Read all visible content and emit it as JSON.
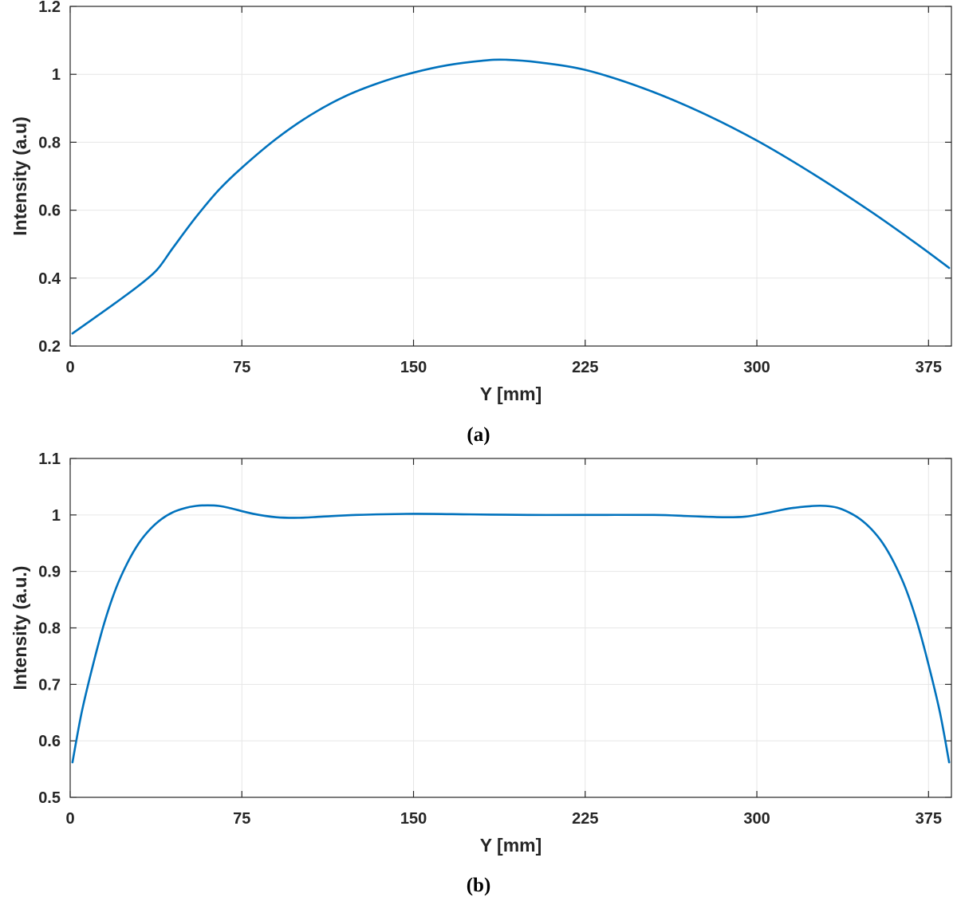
{
  "colors": {
    "series": "#0072bd",
    "axis": "#262626",
    "grid": "#e6e6e6"
  },
  "chart_data": [
    {
      "type": "line",
      "panel_label": "(a)",
      "xlabel": "Y [mm]",
      "ylabel": "Intensity (a.u)",
      "xlim": [
        0,
        385
      ],
      "ylim": [
        0.2,
        1.2
      ],
      "xticks": [
        0,
        75,
        150,
        225,
        300,
        375
      ],
      "yticks": [
        0.2,
        0.4,
        0.6,
        0.8,
        1,
        1.2
      ],
      "ytick_labels": [
        "0.2",
        "0.4",
        "0.6",
        "0.8",
        "1",
        "1.2"
      ],
      "grid": true,
      "series": [
        {
          "x": [
            1,
            10,
            20,
            30,
            38,
            45,
            55,
            65,
            75,
            90,
            105,
            120,
            135,
            150,
            165,
            180,
            190,
            205,
            225,
            250,
            275,
            300,
            325,
            350,
            370,
            384
          ],
          "y": [
            0.237,
            0.28,
            0.328,
            0.378,
            0.425,
            0.49,
            0.58,
            0.66,
            0.725,
            0.81,
            0.88,
            0.935,
            0.975,
            1.005,
            1.027,
            1.04,
            1.043,
            1.035,
            1.013,
            0.96,
            0.89,
            0.805,
            0.705,
            0.595,
            0.5,
            0.43
          ]
        }
      ]
    },
    {
      "type": "line",
      "panel_label": "(b)",
      "xlabel": "Y [mm]",
      "ylabel": "Intensity (a.u.)",
      "xlim": [
        0,
        385
      ],
      "ylim": [
        0.5,
        1.1
      ],
      "xticks": [
        0,
        75,
        150,
        225,
        300,
        375
      ],
      "yticks": [
        0.5,
        0.6,
        0.7,
        0.8,
        0.9,
        1,
        1.1
      ],
      "ytick_labels": [
        "0.5",
        "0.6",
        "0.7",
        "0.8",
        "0.9",
        "1",
        "1.1"
      ],
      "grid": true,
      "series": [
        {
          "x": [
            1,
            5,
            10,
            15,
            20,
            25,
            30,
            35,
            40,
            45,
            50,
            55,
            60,
            65,
            70,
            80,
            90,
            100,
            110,
            125,
            150,
            175,
            200,
            225,
            255,
            270,
            285,
            295,
            305,
            315,
            325,
            330,
            335,
            340,
            345,
            350,
            355,
            360,
            365,
            370,
            375,
            380,
            384
          ],
          "y": [
            0.562,
            0.65,
            0.735,
            0.81,
            0.87,
            0.915,
            0.95,
            0.975,
            0.993,
            1.005,
            1.012,
            1.016,
            1.017,
            1.016,
            1.012,
            1.002,
            0.996,
            0.995,
            0.997,
            1.0,
            1.002,
            1.001,
            1.0,
            1.0,
            1.0,
            0.998,
            0.996,
            0.997,
            1.004,
            1.012,
            1.016,
            1.016,
            1.013,
            1.005,
            0.993,
            0.975,
            0.95,
            0.915,
            0.87,
            0.81,
            0.735,
            0.65,
            0.562
          ]
        }
      ]
    }
  ]
}
